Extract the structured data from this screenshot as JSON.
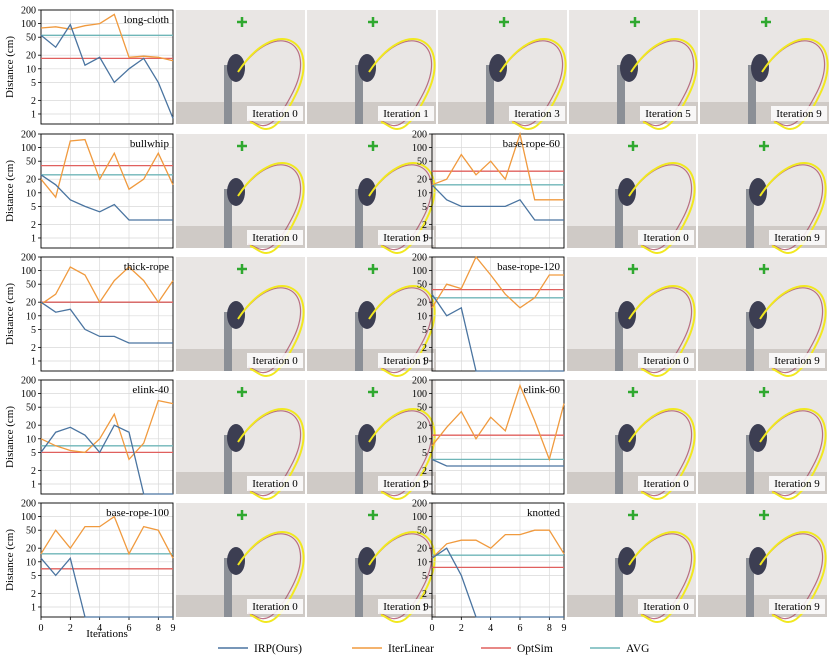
{
  "figure": {
    "ylabel": "Distance (cm)",
    "xlabel": "Iterations",
    "yticks": [
      "1",
      "2",
      "5",
      "10",
      "20",
      "50",
      "100",
      "200"
    ],
    "xticks": [
      "0",
      "2",
      "4",
      "6",
      "8",
      "9"
    ],
    "legend": [
      {
        "label": "IRP(Ours)",
        "color": "#4a74a0"
      },
      {
        "label": "IterLinear",
        "color": "#f09a3e"
      },
      {
        "label": "OptSim",
        "color": "#e0605e"
      },
      {
        "label": "AVG",
        "color": "#6fb6b8"
      }
    ],
    "accent_colors": {
      "outline": "#f1e81f",
      "target": "#2fa82f",
      "trajectory": "#a23a55"
    }
  },
  "chart_data": [
    {
      "type": "line",
      "title": "long-cloth",
      "x": [
        0,
        1,
        2,
        3,
        4,
        5,
        6,
        7,
        8,
        9
      ],
      "ylim": [
        0.6,
        200
      ],
      "yscale": "log",
      "series": [
        {
          "name": "IRP(Ours)",
          "values": [
            55,
            30,
            95,
            12,
            18,
            5,
            10,
            17,
            5,
            0.8
          ]
        },
        {
          "name": "IterLinear",
          "values": [
            80,
            85,
            75,
            90,
            100,
            160,
            18,
            19,
            18,
            15
          ]
        },
        {
          "name": "OptSim",
          "values": [
            17,
            17,
            17,
            17,
            17,
            17,
            17,
            17,
            17,
            17
          ]
        },
        {
          "name": "AVG",
          "values": [
            55,
            55,
            55,
            55,
            55,
            55,
            55,
            55,
            55,
            55
          ]
        }
      ],
      "panels": [
        "Iteration 0",
        "Iteration 1",
        "Iteration 3",
        "Iteration 5",
        "Iteration 9"
      ]
    },
    {
      "type": "line",
      "title": "bullwhip",
      "x": [
        0,
        1,
        2,
        3,
        4,
        5,
        6,
        7,
        8,
        9
      ],
      "ylim": [
        0.6,
        200
      ],
      "yscale": "log",
      "series": [
        {
          "name": "IRP(Ours)",
          "values": [
            25,
            15,
            7,
            5,
            3.8,
            5.5,
            2.5,
            2.5,
            2.5,
            2.5
          ]
        },
        {
          "name": "IterLinear",
          "values": [
            20,
            8,
            140,
            150,
            20,
            75,
            12,
            20,
            75,
            15
          ]
        },
        {
          "name": "OptSim",
          "values": [
            40,
            40,
            40,
            40,
            40,
            40,
            40,
            40,
            40,
            40
          ]
        },
        {
          "name": "AVG",
          "values": [
            25,
            25,
            25,
            25,
            25,
            25,
            25,
            25,
            25,
            25
          ]
        }
      ],
      "panels": [
        "Iteration 0",
        "Iteration 9"
      ]
    },
    {
      "type": "line",
      "title": "base-rope-60",
      "x": [
        0,
        1,
        2,
        3,
        4,
        5,
        6,
        7,
        8,
        9
      ],
      "ylim": [
        0.6,
        200
      ],
      "yscale": "log",
      "series": [
        {
          "name": "IRP(Ours)",
          "values": [
            15,
            7,
            5,
            5,
            5,
            5,
            7,
            2.5,
            2.5,
            2.5
          ]
        },
        {
          "name": "IterLinear",
          "values": [
            15,
            20,
            70,
            25,
            50,
            20,
            200,
            7,
            7,
            7
          ]
        },
        {
          "name": "OptSim",
          "values": [
            30,
            30,
            30,
            30,
            30,
            30,
            30,
            30,
            30,
            30
          ]
        },
        {
          "name": "AVG",
          "values": [
            15,
            15,
            15,
            15,
            15,
            15,
            15,
            15,
            15,
            15
          ]
        }
      ],
      "panels": [
        "Iteration 0",
        "Iteration 9"
      ]
    },
    {
      "type": "line",
      "title": "thick-rope",
      "x": [
        0,
        1,
        2,
        3,
        4,
        5,
        6,
        7,
        8,
        9
      ],
      "ylim": [
        0.6,
        200
      ],
      "yscale": "log",
      "series": [
        {
          "name": "IRP(Ours)",
          "values": [
            20,
            12,
            14,
            5,
            3.5,
            3.5,
            2.5,
            2.5,
            2.5,
            2.5
          ]
        },
        {
          "name": "IterLinear",
          "values": [
            18,
            30,
            120,
            80,
            20,
            60,
            120,
            60,
            20,
            60
          ]
        },
        {
          "name": "OptSim",
          "values": [
            20,
            20,
            20,
            20,
            20,
            20,
            20,
            20,
            20,
            20
          ]
        },
        {
          "name": "AVG",
          "values": [
            20,
            20,
            20,
            20,
            20,
            20,
            20,
            20,
            20,
            20
          ]
        }
      ],
      "panels": [
        "Iteration 0",
        "Iteration 9"
      ]
    },
    {
      "type": "line",
      "title": "base-rope-120",
      "x": [
        0,
        1,
        2,
        3,
        4,
        5,
        6,
        7,
        8,
        9
      ],
      "ylim": [
        0.6,
        200
      ],
      "yscale": "log",
      "series": [
        {
          "name": "IRP(Ours)",
          "values": [
            30,
            10,
            15,
            0.6,
            0.6,
            0.6,
            0.6,
            0.6,
            0.6,
            0.6
          ]
        },
        {
          "name": "IterLinear",
          "values": [
            15,
            50,
            40,
            200,
            80,
            30,
            15,
            25,
            80,
            80
          ]
        },
        {
          "name": "OptSim",
          "values": [
            38,
            38,
            38,
            38,
            38,
            38,
            38,
            38,
            38,
            38
          ]
        },
        {
          "name": "AVG",
          "values": [
            25,
            25,
            25,
            25,
            25,
            25,
            25,
            25,
            25,
            25
          ]
        }
      ],
      "panels": [
        "Iteration 0",
        "Iteration 9"
      ]
    },
    {
      "type": "line",
      "title": "elink-40",
      "x": [
        0,
        1,
        2,
        3,
        4,
        5,
        6,
        7,
        8,
        9
      ],
      "ylim": [
        0.6,
        200
      ],
      "yscale": "log",
      "series": [
        {
          "name": "IRP(Ours)",
          "values": [
            5,
            14,
            18,
            12,
            5,
            20,
            14,
            0.6,
            0.6,
            0.6
          ]
        },
        {
          "name": "IterLinear",
          "values": [
            10,
            7,
            5.5,
            5,
            10,
            35,
            3.5,
            8,
            70,
            60
          ]
        },
        {
          "name": "OptSim",
          "values": [
            5,
            5,
            5,
            5,
            5,
            5,
            5,
            5,
            5,
            5
          ]
        },
        {
          "name": "AVG",
          "values": [
            7,
            7,
            7,
            7,
            7,
            7,
            7,
            7,
            7,
            7
          ]
        }
      ],
      "panels": [
        "Iteration 0",
        "Iteration 9"
      ]
    },
    {
      "type": "line",
      "title": "elink-60",
      "x": [
        0,
        1,
        2,
        3,
        4,
        5,
        6,
        7,
        8,
        9
      ],
      "ylim": [
        0.6,
        200
      ],
      "yscale": "log",
      "series": [
        {
          "name": "IRP(Ours)",
          "values": [
            3.5,
            2.5,
            2.5,
            2.5,
            2.5,
            2.5,
            2.5,
            2.5,
            2.5,
            2.5
          ]
        },
        {
          "name": "IterLinear",
          "values": [
            7,
            18,
            40,
            10,
            30,
            15,
            150,
            25,
            3.5,
            60
          ]
        },
        {
          "name": "OptSim",
          "values": [
            12,
            12,
            12,
            12,
            12,
            12,
            12,
            12,
            12,
            12
          ]
        },
        {
          "name": "AVG",
          "values": [
            3.5,
            3.5,
            3.5,
            3.5,
            3.5,
            3.5,
            3.5,
            3.5,
            3.5,
            3.5
          ]
        }
      ],
      "panels": [
        "Iteration 0",
        "Iteration 9"
      ]
    },
    {
      "type": "line",
      "title": "base-rope-100",
      "x": [
        0,
        1,
        2,
        3,
        4,
        5,
        6,
        7,
        8,
        9
      ],
      "ylim": [
        0.6,
        200
      ],
      "yscale": "log",
      "series": [
        {
          "name": "IRP(Ours)",
          "values": [
            12,
            5,
            12,
            0.6,
            0.6,
            0.6,
            0.6,
            0.6,
            0.6,
            0.6
          ]
        },
        {
          "name": "IterLinear",
          "values": [
            15,
            50,
            20,
            60,
            60,
            100,
            15,
            60,
            50,
            12
          ]
        },
        {
          "name": "OptSim",
          "values": [
            7,
            7,
            7,
            7,
            7,
            7,
            7,
            7,
            7,
            7
          ]
        },
        {
          "name": "AVG",
          "values": [
            15,
            15,
            15,
            15,
            15,
            15,
            15,
            15,
            15,
            15
          ]
        }
      ],
      "panels": [
        "Iteration 0",
        "Iteration 9"
      ]
    },
    {
      "type": "line",
      "title": "knotted",
      "x": [
        0,
        1,
        2,
        3,
        4,
        5,
        6,
        7,
        8,
        9
      ],
      "ylim": [
        0.6,
        200
      ],
      "yscale": "log",
      "series": [
        {
          "name": "IRP(Ours)",
          "values": [
            12,
            20,
            5,
            0.6,
            0.6,
            0.6,
            0.6,
            0.6,
            0.6,
            0.6
          ]
        },
        {
          "name": "IterLinear",
          "values": [
            12,
            25,
            30,
            30,
            20,
            40,
            40,
            50,
            50,
            15
          ]
        },
        {
          "name": "OptSim",
          "values": [
            7.5,
            7.5,
            7.5,
            7.5,
            7.5,
            7.5,
            7.5,
            7.5,
            7.5,
            7.5
          ]
        },
        {
          "name": "AVG",
          "values": [
            14,
            14,
            14,
            14,
            14,
            14,
            14,
            14,
            14,
            14
          ]
        }
      ],
      "panels": [
        "Iteration 0",
        "Iteration 9"
      ]
    }
  ]
}
